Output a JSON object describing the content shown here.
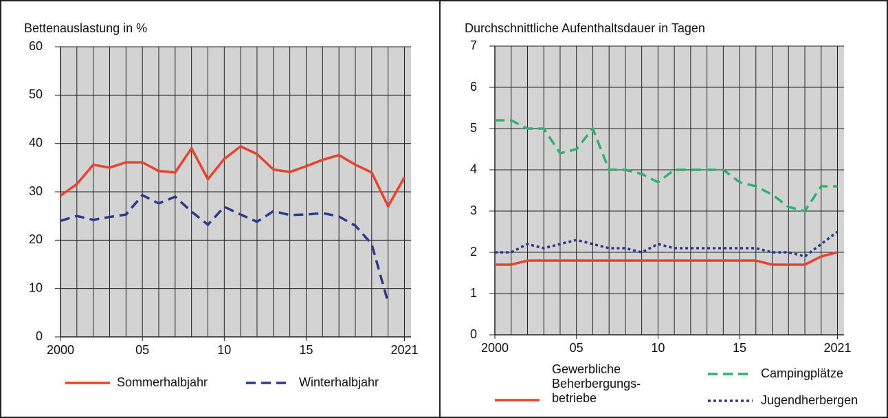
{
  "chart_data": [
    {
      "type": "line",
      "title": "Bettenauslastung in %",
      "x": [
        2000,
        2001,
        2002,
        2003,
        2004,
        2005,
        2006,
        2007,
        2008,
        2009,
        2010,
        2011,
        2012,
        2013,
        2014,
        2015,
        2016,
        2017,
        2018,
        2019,
        2020,
        2021
      ],
      "series": [
        {
          "name": "Sommerhalbjahr",
          "color": "#e8412c",
          "style": "solid",
          "values": [
            29.2,
            31.6,
            35.6,
            35,
            36.1,
            36.1,
            34.3,
            34,
            39,
            32.6,
            36.8,
            39.4,
            37.8,
            34.6,
            34.1,
            35.3,
            36.6,
            37.6,
            35.6,
            34,
            27,
            33
          ]
        },
        {
          "name": "Winterhalbjahr",
          "color": "#2b3a8c",
          "style": "dashed",
          "values": [
            24,
            25,
            24.2,
            24.8,
            25.3,
            29.3,
            27.6,
            29,
            25.9,
            23.2,
            26.9,
            25.3,
            23.8,
            26,
            25.2,
            25.3,
            25.6,
            24.9,
            23,
            19.2,
            7.1,
            null
          ]
        }
      ],
      "xlim": [
        2000,
        2021.4
      ],
      "xticks": [
        2000,
        {
          "value": 2005,
          "label": "05"
        },
        {
          "value": 2010,
          "label": "10"
        },
        {
          "value": 2015,
          "label": "15"
        },
        2021
      ],
      "ylim": [
        0,
        60
      ],
      "yticks": [
        0,
        10,
        20,
        30,
        40,
        50,
        60
      ],
      "grid": true
    },
    {
      "type": "line",
      "title": "Durchschnittliche Aufenthaltsdauer in Tagen",
      "x": [
        2000,
        2001,
        2002,
        2003,
        2004,
        2005,
        2006,
        2007,
        2008,
        2009,
        2010,
        2011,
        2012,
        2013,
        2014,
        2015,
        2016,
        2017,
        2018,
        2019,
        2020,
        2021
      ],
      "series": [
        {
          "name": "Gewerbliche\nBeherbergungs-\nbetriebe",
          "color": "#e8412c",
          "style": "solid",
          "values": [
            1.7,
            1.7,
            1.8,
            1.8,
            1.8,
            1.8,
            1.8,
            1.8,
            1.8,
            1.8,
            1.8,
            1.8,
            1.8,
            1.8,
            1.8,
            1.8,
            1.8,
            1.7,
            1.7,
            1.7,
            1.9,
            2
          ]
        },
        {
          "name": "Campingplätze",
          "color": "#2eb36e",
          "style": "dashed",
          "values": [
            5.2,
            5.2,
            5,
            5,
            4.4,
            4.5,
            5,
            4,
            4,
            3.9,
            3.7,
            4,
            4,
            4,
            4,
            3.7,
            3.6,
            3.4,
            3.1,
            3,
            3.6,
            3.6
          ]
        },
        {
          "name": "Jugendherbergen",
          "color": "#2b3a8c",
          "style": "dotted",
          "values": [
            2,
            2,
            2.2,
            2.1,
            2.2,
            2.3,
            2.2,
            2.1,
            2.1,
            2,
            2.2,
            2.1,
            2.1,
            2.1,
            2.1,
            2.1,
            2.1,
            2,
            2,
            1.9,
            2.2,
            2.5
          ]
        }
      ],
      "xlim": [
        2000,
        2021.4
      ],
      "xticks": [
        2000,
        {
          "value": 2005,
          "label": "05"
        },
        {
          "value": 2010,
          "label": "10"
        },
        {
          "value": 2015,
          "label": "15"
        },
        2021
      ],
      "ylim": [
        0,
        7
      ],
      "yticks": [
        0,
        1,
        2,
        3,
        4,
        5,
        6,
        7
      ],
      "grid": true
    }
  ]
}
